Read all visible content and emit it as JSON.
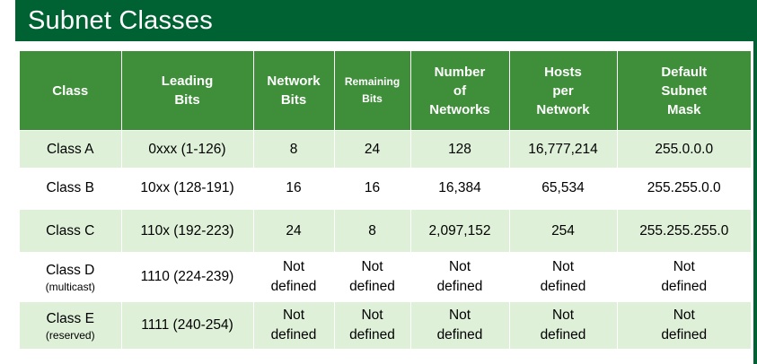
{
  "title": "Subnet Classes",
  "colors": {
    "title_bar": "#006233",
    "header_bg": "#3f8e3a",
    "shaded_row": "#dff0d8",
    "plain_row": "#ffffff"
  },
  "table": {
    "headers": [
      {
        "lines": [
          "Class"
        ]
      },
      {
        "lines": [
          "Leading",
          "Bits"
        ]
      },
      {
        "lines": [
          "Network",
          "Bits"
        ]
      },
      {
        "lines": [
          "Remaining",
          "Bits"
        ]
      },
      {
        "lines": [
          "Number",
          "of",
          "Networks"
        ]
      },
      {
        "lines": [
          "Hosts",
          "per",
          "Network"
        ]
      },
      {
        "lines": [
          "Default",
          "Subnet",
          "Mask"
        ]
      }
    ],
    "rows": [
      {
        "class": "Class A",
        "note": "",
        "leading_bits": "0xxx (1-126)",
        "network_bits": "8",
        "remaining_bits": "24",
        "networks": "128",
        "hosts": "16,777,214",
        "mask": "255.0.0.0"
      },
      {
        "class": "Class B",
        "note": "",
        "leading_bits": "10xx (128-191)",
        "network_bits": "16",
        "remaining_bits": "16",
        "networks": "16,384",
        "hosts": "65,534",
        "mask": "255.255.0.0"
      },
      {
        "class": "Class C",
        "note": "",
        "leading_bits": "110x (192-223)",
        "network_bits": "24",
        "remaining_bits": "8",
        "networks": "2,097,152",
        "hosts": "254",
        "mask": "255.255.255.0"
      },
      {
        "class": "Class D",
        "note": "(multicast)",
        "leading_bits": "1110 (224-239)",
        "network_bits": [
          "Not",
          "defined"
        ],
        "remaining_bits": [
          "Not",
          "defined"
        ],
        "networks": [
          "Not",
          "defined"
        ],
        "hosts": [
          "Not",
          "defined"
        ],
        "mask": [
          "Not",
          "defined"
        ]
      },
      {
        "class": "Class E",
        "note": "(reserved)",
        "leading_bits": "1111 (240-254)",
        "network_bits": [
          "Not",
          "defined"
        ],
        "remaining_bits": [
          "Not",
          "defined"
        ],
        "networks": [
          "Not",
          "defined"
        ],
        "hosts": [
          "Not",
          "defined"
        ],
        "mask": [
          "Not",
          "defined"
        ]
      }
    ]
  }
}
